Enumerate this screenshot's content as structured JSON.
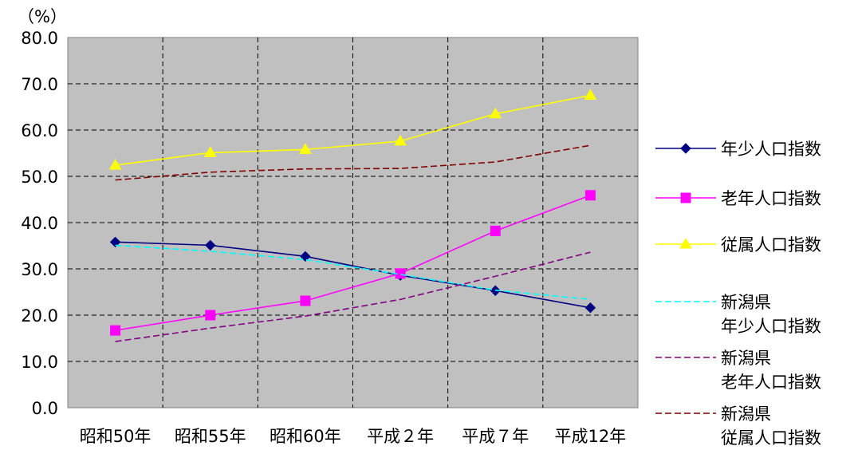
{
  "chart_data": {
    "type": "line",
    "ylabel": "（%）",
    "categories": [
      "昭和50年",
      "昭和55年",
      "昭和60年",
      "平成２年",
      "平成７年",
      "平成12年"
    ],
    "ylim": [
      0,
      80
    ],
    "yticks": [
      "0.0",
      "10.0",
      "20.0",
      "30.0",
      "40.0",
      "50.0",
      "60.0",
      "70.0",
      "80.0"
    ],
    "grid": true,
    "legend_position": "right",
    "series": [
      {
        "name": "年少人口指数",
        "values": [
          35.8,
          35.1,
          32.7,
          28.6,
          25.3,
          21.6
        ],
        "color": "#000080",
        "style": "solid",
        "marker": "diamond"
      },
      {
        "name": "老年人口指数",
        "values": [
          16.7,
          20.0,
          23.1,
          29.0,
          38.2,
          45.9
        ],
        "color": "#ff00ff",
        "style": "solid",
        "marker": "square"
      },
      {
        "name": "従属人口指数",
        "values": [
          52.4,
          55.1,
          55.8,
          57.6,
          63.5,
          67.5
        ],
        "color": "#ffff00",
        "style": "solid",
        "marker": "triangle"
      },
      {
        "name_lines": [
          "新潟県",
          "年少人口指数"
        ],
        "values": [
          35.1,
          33.8,
          32.0,
          28.8,
          25.4,
          23.4
        ],
        "color": "#00ffff",
        "style": "dashed",
        "marker": "none"
      },
      {
        "name_lines": [
          "新潟県",
          "老年人口指数"
        ],
        "values": [
          14.3,
          17.2,
          19.8,
          23.4,
          28.4,
          33.6
        ],
        "color": "#800080",
        "style": "dashed",
        "marker": "none"
      },
      {
        "name_lines": [
          "新潟県",
          "従属人口指数"
        ],
        "values": [
          49.2,
          50.9,
          51.6,
          51.7,
          53.1,
          56.7
        ],
        "color": "#800000",
        "style": "dashed",
        "marker": "none"
      }
    ]
  }
}
